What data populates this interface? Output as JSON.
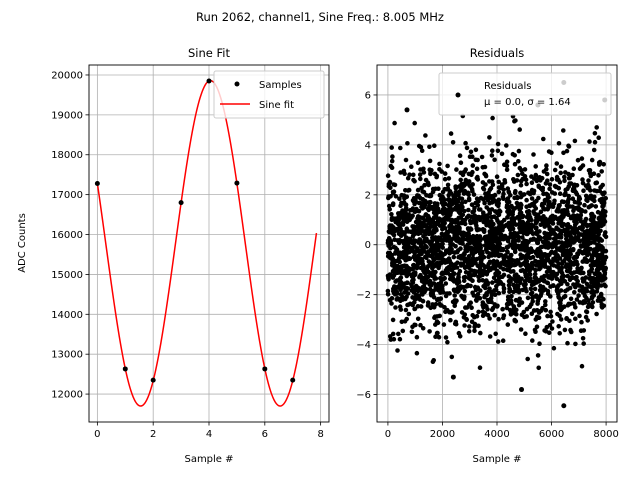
{
  "figure": {
    "suptitle": "Run 2062, channel1, Sine Freq.: 8.005 MHz"
  },
  "chart_data": [
    {
      "type": "scatter",
      "title": "Sine Fit",
      "xlabel": "Sample #",
      "ylabel": "ADC Counts",
      "xlim": [
        -0.3,
        8.3
      ],
      "ylim": [
        11300,
        20250
      ],
      "xticks": [
        0,
        2,
        4,
        6,
        8
      ],
      "yticks": [
        12000,
        13000,
        14000,
        15000,
        16000,
        17000,
        18000,
        19000,
        20000
      ],
      "grid": true,
      "legend_position": "top-right",
      "series": [
        {
          "name": "Samples",
          "kind": "points",
          "color": "#000000",
          "x": [
            0,
            1,
            2,
            3,
            4,
            5,
            6,
            7
          ],
          "y": [
            17280,
            12630,
            12350,
            16800,
            19850,
            17290,
            12630,
            12350
          ]
        },
        {
          "name": "Sine fit",
          "kind": "line",
          "color": "#ff0000",
          "model": "y = offset + amplitude * sin(2*pi*(x - phase)/period)",
          "offset": 15780,
          "amplitude": 4080,
          "period": 5.0,
          "phase": 2.8,
          "x_range": [
            0,
            7.85
          ]
        }
      ]
    },
    {
      "type": "scatter",
      "title": "Residuals",
      "xlabel": "Sample #",
      "ylabel": "",
      "xlim": [
        -400,
        8400
      ],
      "ylim": [
        -7.1,
        7.2
      ],
      "xticks": [
        0,
        2000,
        4000,
        6000,
        8000
      ],
      "yticks": [
        -6,
        -4,
        -2,
        0,
        2,
        4,
        6
      ],
      "grid": true,
      "legend_position": "top-right",
      "series": [
        {
          "name": "Residuals",
          "kind": "points",
          "color": "#000000",
          "x_range": [
            0,
            8000
          ],
          "mean": 0.0,
          "sigma": 1.64,
          "point_count": 8000,
          "notable_points": [
            {
              "x": 700,
              "y": 5.4
            },
            {
              "x": 2400,
              "y": -5.3
            },
            {
              "x": 4900,
              "y": -5.8
            },
            {
              "x": 5500,
              "y": 5.6
            },
            {
              "x": 6450,
              "y": 6.5
            },
            {
              "x": 6450,
              "y": -6.45
            },
            {
              "x": 7950,
              "y": 5.8
            }
          ]
        }
      ],
      "legend_label_line1": "Residuals",
      "legend_label_line2": "μ = 0.0, σ = 1.64"
    }
  ]
}
